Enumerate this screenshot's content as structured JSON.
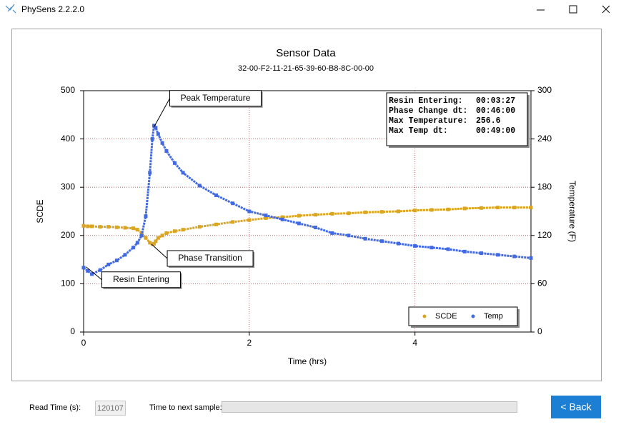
{
  "window": {
    "title": "PhySens 2.2.2.0"
  },
  "chart_data": {
    "type": "line",
    "title": "Sensor Data",
    "subtitle": "32-00-F2-11-21-65-39-60-B8-8C-00-00",
    "x_label": "Time (hrs)",
    "y_label": "SCDE",
    "y2_label": "Temperature (F)",
    "xlim": [
      0,
      5.4
    ],
    "xticks": [
      0,
      2,
      4
    ],
    "ylim": [
      0,
      500
    ],
    "yticks": [
      0,
      100,
      200,
      300,
      400,
      500
    ],
    "y2lim": [
      0,
      300
    ],
    "y2ticks": [
      0,
      60,
      120,
      180,
      240,
      300
    ],
    "grid": true,
    "legend": "lower right",
    "x": [
      0,
      0.05,
      0.1,
      0.2,
      0.3,
      0.4,
      0.5,
      0.6,
      0.65,
      0.7,
      0.75,
      0.8,
      0.83,
      0.85,
      0.87,
      0.9,
      0.95,
      1.0,
      1.1,
      1.2,
      1.4,
      1.6,
      1.8,
      2.0,
      2.2,
      2.4,
      2.6,
      2.8,
      3.0,
      3.2,
      3.4,
      3.6,
      3.8,
      4.0,
      4.2,
      4.4,
      4.6,
      4.8,
      5.0,
      5.2,
      5.4
    ],
    "series": [
      {
        "name": "SCDE",
        "color": "#daa520",
        "axis": "y",
        "values": [
          220,
          219,
          219,
          218,
          218,
          217,
          216,
          215,
          212,
          205,
          195,
          185,
          182,
          183,
          188,
          195,
          200,
          205,
          209,
          212,
          218,
          223,
          228,
          232,
          236,
          238,
          241,
          243,
          245,
          246,
          248,
          249,
          250,
          252,
          253,
          254,
          256,
          257,
          258,
          258,
          258
        ]
      },
      {
        "name": "Temp",
        "color": "#4169e1",
        "axis": "y2",
        "values": [
          80,
          76,
          72,
          77,
          84,
          89,
          96,
          105,
          111,
          120,
          144,
          198,
          240,
          256.6,
          254,
          246,
          235,
          225,
          210,
          198,
          182,
          170,
          160,
          150,
          145,
          140,
          135,
          130,
          123,
          120,
          116,
          113,
          110,
          107,
          105,
          103,
          100,
          98,
          96,
          94,
          92
        ]
      }
    ],
    "annotations": [
      {
        "text": "Peak Temperature",
        "x": 0.85,
        "y": 425
      },
      {
        "text": "Phase Transition",
        "x": 0.82,
        "y": 182
      },
      {
        "text": "Resin Entering",
        "x": 0.03,
        "y": 135
      }
    ],
    "info_box": [
      {
        "label": "Resin Entering:",
        "value": "00:03:27"
      },
      {
        "label": "Phase Change dt:",
        "value": "00:46:00"
      },
      {
        "label": "Max Temperature:",
        "value": "256.6"
      },
      {
        "label": "Max Temp dt:",
        "value": "00:49:00"
      }
    ]
  },
  "footer": {
    "read_time_label": "Read Time (s):",
    "read_time_value": "120107",
    "next_sample_label": "Time to next sample:",
    "back_button": "< Back"
  }
}
